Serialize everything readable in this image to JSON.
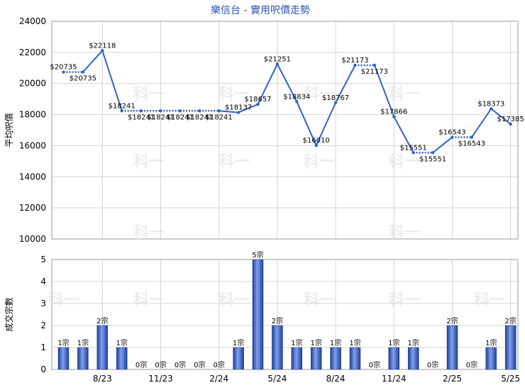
{
  "chart_data": [
    {
      "type": "line",
      "title": "樂信台 - 實用呎價走勢",
      "ylabel": "平均呎價",
      "ylim": [
        10000,
        24000
      ],
      "yticks": [
        10000,
        12000,
        14000,
        16000,
        18000,
        20000,
        22000,
        24000
      ],
      "x_month_index": [
        0,
        1,
        2,
        3,
        4,
        5,
        6,
        7,
        8,
        9,
        10,
        11,
        12,
        13,
        14,
        15,
        16,
        17,
        18,
        19,
        20,
        21,
        22,
        23
      ],
      "xtick_labels": [
        {
          "label": "8/23",
          "index": 2
        },
        {
          "label": "11/23",
          "index": 5
        },
        {
          "label": "2/24",
          "index": 8
        },
        {
          "label": "5/24",
          "index": 11
        },
        {
          "label": "8/24",
          "index": 14
        },
        {
          "label": "11/24",
          "index": 17
        },
        {
          "label": "2/25",
          "index": 20
        },
        {
          "label": "5/25",
          "index": 23
        }
      ],
      "values": [
        20735,
        20735,
        22118,
        18241,
        18241,
        18241,
        18241,
        18241,
        18241,
        18137,
        18657,
        21251,
        18834,
        16010,
        18767,
        21173,
        21173,
        17866,
        15551,
        15551,
        16543,
        16543,
        18373,
        17385
      ],
      "point_labels": [
        "$20735",
        "$20735",
        "$22118",
        "$18241",
        "$18241",
        "$18241",
        "$18241",
        "$18241",
        "$18241",
        "$18137",
        "$18657",
        "$21251",
        "$18834",
        "$16010",
        "$18767",
        "$21173",
        "$21173",
        "$17866",
        "$15551",
        "$15551",
        "$16543",
        "$16543",
        "$18373",
        "$17385"
      ],
      "carried_forward": [
        false,
        true,
        false,
        false,
        true,
        true,
        true,
        true,
        true,
        false,
        false,
        false,
        false,
        false,
        false,
        false,
        true,
        false,
        false,
        true,
        false,
        true,
        false,
        false
      ],
      "line_color": "#3363c4",
      "grid": true
    },
    {
      "type": "bar",
      "ylabel": "成交宗數",
      "ylim": [
        0,
        5
      ],
      "yticks": [
        0,
        1,
        2,
        3,
        4,
        5
      ],
      "values": [
        1,
        1,
        2,
        1,
        0,
        0,
        0,
        0,
        0,
        1,
        5,
        2,
        1,
        1,
        1,
        1,
        0,
        1,
        1,
        0,
        2,
        0,
        1,
        2
      ],
      "bar_labels": [
        "1宗",
        "1宗",
        "2宗",
        "1宗",
        "0宗",
        "0宗",
        "0宗",
        "0宗",
        "0宗",
        "1宗",
        "5宗",
        "2宗",
        "1宗",
        "1宗",
        "1宗",
        "1宗",
        "0宗",
        "1宗",
        "1宗",
        "0宗",
        "2宗",
        "0宗",
        "1宗",
        "2宗"
      ],
      "bar_color": "#2a52be",
      "grid": true
    }
  ],
  "watermark": "科一"
}
